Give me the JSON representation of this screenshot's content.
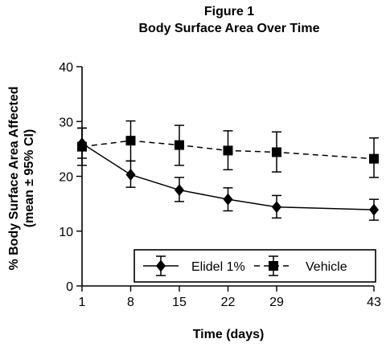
{
  "chart_data": {
    "type": "line",
    "title": "Figure 1",
    "subtitle": "Body Surface Area Over Time",
    "xlabel": "Time (days)",
    "ylabel_line1": "% Body Surface Area Affected",
    "ylabel_line2": "(mean ± 95% CI)",
    "x": [
      1,
      8,
      15,
      22,
      29,
      43
    ],
    "xticks": [
      "1",
      "8",
      "15",
      "22",
      "29",
      "43"
    ],
    "xlim": [
      1,
      43
    ],
    "ylim": [
      0,
      40
    ],
    "yticks": [
      "0",
      "10",
      "20",
      "30",
      "40"
    ],
    "grid": false,
    "legend_position": "bottom-right",
    "series": [
      {
        "name": "Elidel 1%",
        "marker": "diamond",
        "line_style": "solid",
        "values": [
          26.0,
          20.3,
          17.5,
          15.8,
          14.4,
          13.9
        ],
        "ci_low": [
          23.3,
          18.0,
          15.4,
          13.7,
          12.4,
          12.0
        ],
        "ci_high": [
          28.8,
          22.8,
          19.8,
          17.9,
          16.5,
          15.8
        ]
      },
      {
        "name": "Vehicle",
        "marker": "square",
        "line_style": "dashed",
        "values": [
          25.4,
          26.5,
          25.7,
          24.7,
          24.4,
          23.2
        ],
        "ci_low": [
          22.0,
          22.8,
          22.0,
          21.2,
          20.8,
          19.8
        ],
        "ci_high": [
          28.8,
          30.1,
          29.3,
          28.3,
          28.1,
          27.0
        ]
      }
    ]
  }
}
